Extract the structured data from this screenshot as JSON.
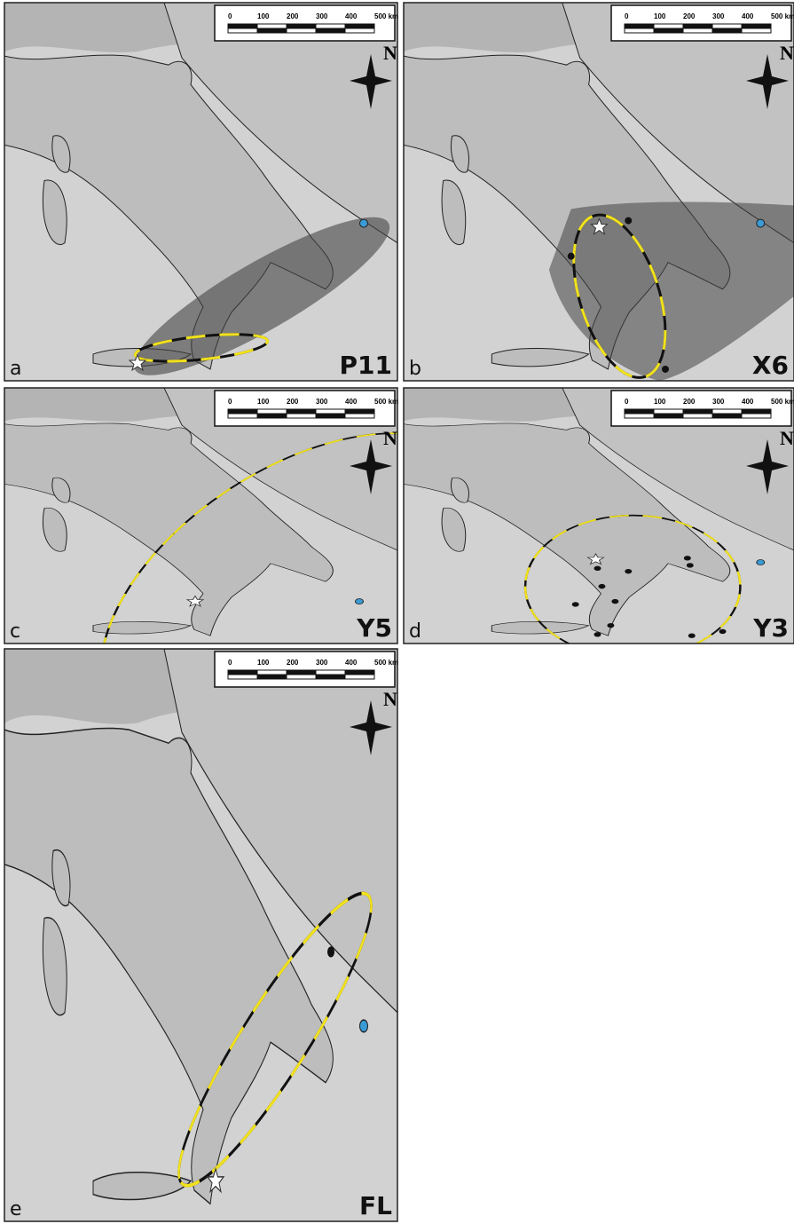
{
  "scale_bar": {
    "ticks": [
      "0",
      "100",
      "200",
      "300",
      "400",
      "500 km"
    ]
  },
  "compass": "N",
  "panels": [
    {
      "letter": "a",
      "label": "P11"
    },
    {
      "letter": "b",
      "label": "X6"
    },
    {
      "letter": "c",
      "label": "Y5"
    },
    {
      "letter": "d",
      "label": "Y3"
    },
    {
      "letter": "e",
      "label": "FL"
    }
  ]
}
